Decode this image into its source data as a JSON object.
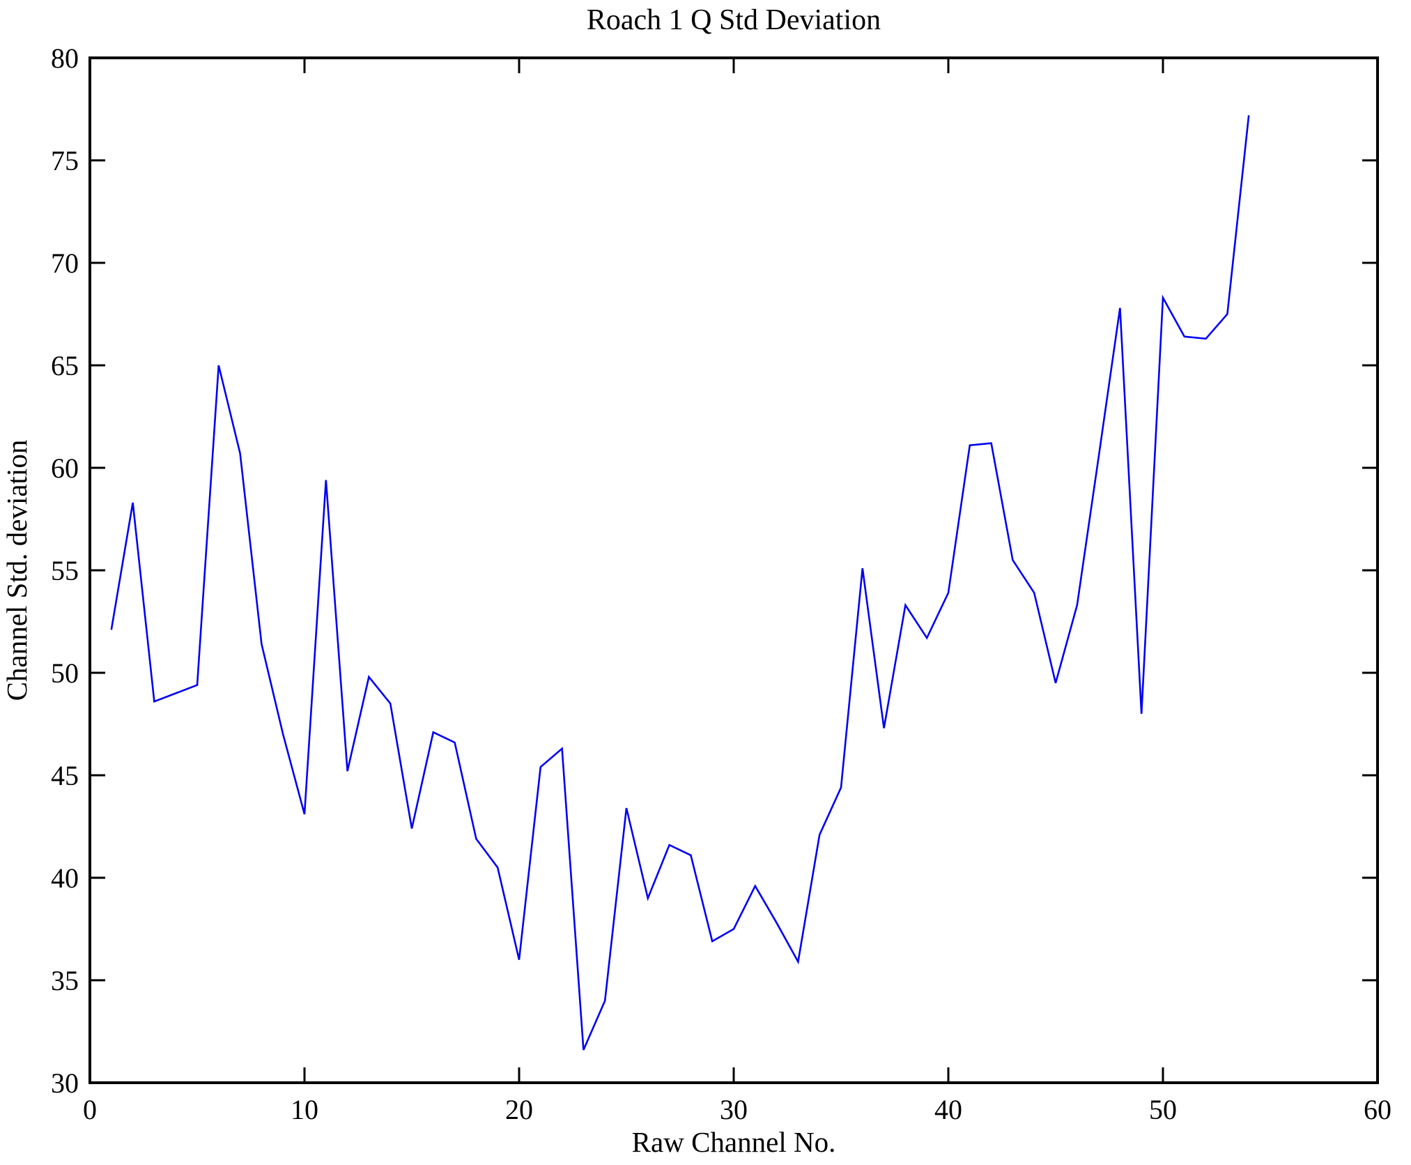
{
  "chart_data": {
    "type": "line",
    "title": "Roach 1 Q Std Deviation",
    "xlabel": "Raw Channel No.",
    "ylabel": "Channel Std. deviation",
    "xlim": [
      0,
      60
    ],
    "ylim": [
      30,
      80
    ],
    "x_ticks": [
      0,
      10,
      20,
      30,
      40,
      50,
      60
    ],
    "y_ticks": [
      30,
      35,
      40,
      45,
      50,
      55,
      60,
      65,
      70,
      75,
      80
    ],
    "grid": false,
    "legend_position": "none",
    "line_color": "#0000f2",
    "axis_color": "#000000",
    "background_color": "#ffffff",
    "x": [
      1,
      2,
      3,
      4,
      5,
      6,
      7,
      8,
      9,
      10,
      11,
      12,
      13,
      14,
      15,
      16,
      17,
      18,
      19,
      20,
      21,
      22,
      23,
      24,
      25,
      26,
      27,
      28,
      29,
      30,
      31,
      32,
      33,
      34,
      35,
      36,
      37,
      38,
      39,
      40,
      41,
      42,
      43,
      44,
      45,
      46,
      47,
      48,
      49,
      50,
      51,
      52,
      53,
      54
    ],
    "values": [
      52.1,
      58.3,
      48.6,
      49.0,
      49.4,
      65.0,
      60.7,
      51.4,
      47.0,
      43.1,
      59.4,
      45.2,
      49.8,
      48.5,
      42.4,
      47.1,
      46.6,
      41.9,
      40.5,
      36.0,
      45.4,
      46.3,
      31.6,
      34.0,
      43.4,
      39.0,
      41.6,
      41.1,
      36.9,
      37.5,
      39.6,
      37.8,
      35.9,
      42.1,
      44.4,
      55.1,
      47.3,
      53.3,
      51.7,
      53.9,
      61.1,
      61.2,
      55.5,
      53.9,
      49.5,
      53.3,
      60.5,
      67.8,
      48.0,
      68.3,
      66.4,
      66.3,
      67.5,
      77.2
    ]
  }
}
